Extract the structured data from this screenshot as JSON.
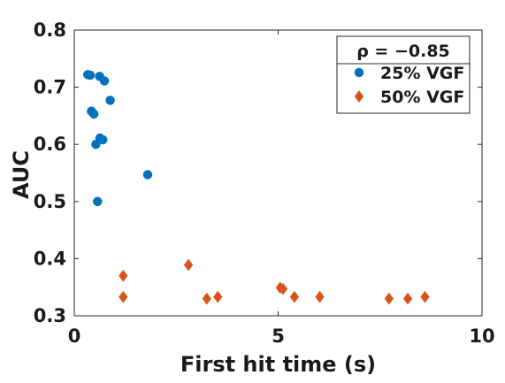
{
  "chart_data": {
    "type": "scatter",
    "xlabel": "First hit time (s)",
    "ylabel": "AUC",
    "xlim": [
      0,
      10
    ],
    "ylim": [
      0.3,
      0.8
    ],
    "xticks": [
      "0",
      "5",
      "10"
    ],
    "yticks": [
      "0.3",
      "0.4",
      "0.5",
      "0.6",
      "0.7",
      "0.8"
    ],
    "grid": false,
    "legend": {
      "placement": "top-right",
      "header": "ρ = −0.85"
    },
    "series": [
      {
        "name": "25% VGF",
        "color": "#0072BD",
        "marker": "circle",
        "points": [
          {
            "x": 0.33,
            "y": 0.722
          },
          {
            "x": 0.39,
            "y": 0.721
          },
          {
            "x": 0.62,
            "y": 0.719
          },
          {
            "x": 0.74,
            "y": 0.711
          },
          {
            "x": 0.88,
            "y": 0.677
          },
          {
            "x": 0.42,
            "y": 0.658
          },
          {
            "x": 0.48,
            "y": 0.653
          },
          {
            "x": 0.63,
            "y": 0.611
          },
          {
            "x": 0.7,
            "y": 0.608
          },
          {
            "x": 0.53,
            "y": 0.6
          },
          {
            "x": 1.8,
            "y": 0.547
          },
          {
            "x": 0.57,
            "y": 0.5
          }
        ]
      },
      {
        "name": "50% VGF",
        "color": "#D95319",
        "marker": "diamond",
        "points": [
          {
            "x": 1.2,
            "y": 0.37
          },
          {
            "x": 1.2,
            "y": 0.333
          },
          {
            "x": 2.8,
            "y": 0.389
          },
          {
            "x": 3.25,
            "y": 0.33
          },
          {
            "x": 3.52,
            "y": 0.333
          },
          {
            "x": 5.05,
            "y": 0.349
          },
          {
            "x": 5.12,
            "y": 0.347
          },
          {
            "x": 5.4,
            "y": 0.333
          },
          {
            "x": 6.02,
            "y": 0.333
          },
          {
            "x": 7.72,
            "y": 0.33
          },
          {
            "x": 8.18,
            "y": 0.33
          },
          {
            "x": 8.6,
            "y": 0.333
          }
        ]
      }
    ]
  }
}
